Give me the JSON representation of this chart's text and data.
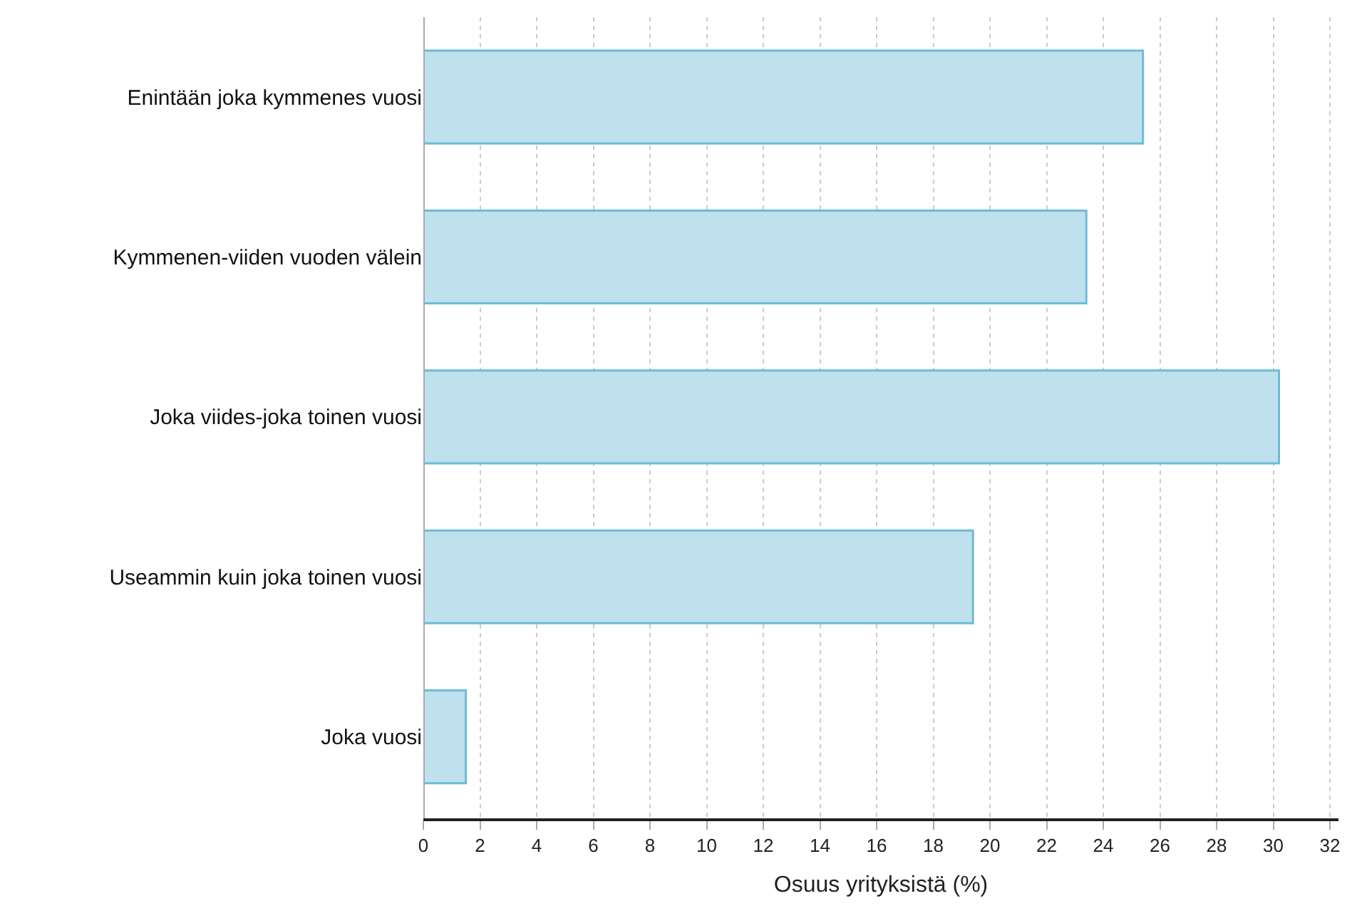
{
  "chart_data": {
    "type": "bar",
    "orientation": "horizontal",
    "xlabel": "Osuus yrityksistä (%)",
    "categories": [
      "Enintään joka kymmenes vuosi",
      "Kymmenen-viiden vuoden välein",
      "Joka viides-joka toinen vuosi",
      "Useammin kuin joka toinen vuosi",
      "Joka vuosi"
    ],
    "values": [
      25.4,
      23.4,
      30.2,
      19.4,
      1.5
    ],
    "color": "#bfe0ed",
    "xlim": [
      0,
      32.3
    ],
    "xticks": [
      0,
      2,
      4,
      6,
      8,
      10,
      12,
      14,
      16,
      18,
      20,
      22,
      24,
      26,
      28,
      30,
      32
    ],
    "grid": "x",
    "legend": false
  }
}
